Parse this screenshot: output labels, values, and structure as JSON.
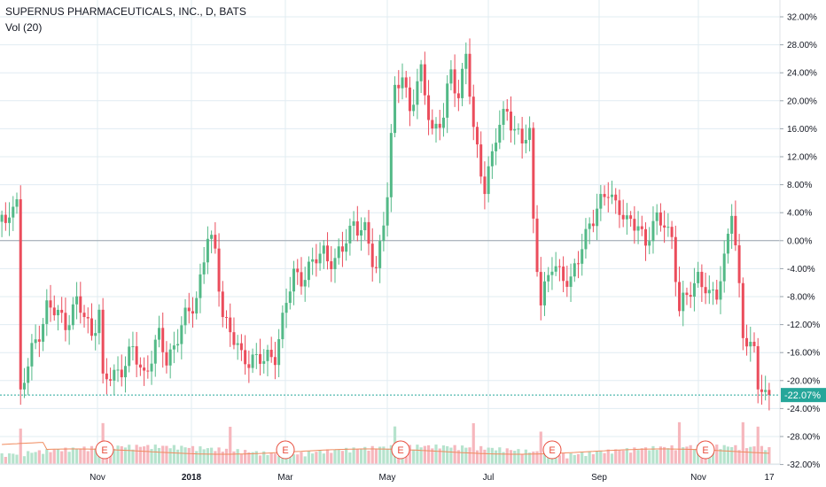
{
  "legend": {
    "symbol": "SUPERNUS PHARMACEUTICALS, INC., D, BATS",
    "volume": "Vol (20)"
  },
  "colors": {
    "up": "#53b987",
    "down": "#eb4d5c",
    "vol_up": "#b6e3cd",
    "vol_down": "#f6b7bd",
    "grid": "#e1ecf2",
    "zero_line": "#9aa4ad",
    "last_line": "#26a69a",
    "vol_ma": "#f08a5d",
    "earnings": "#e74c3c"
  },
  "chart_data": {
    "type": "candlestick",
    "y_unit": "% change",
    "ylim": [
      -32,
      34
    ],
    "y_ticks": [
      "32.00%",
      "28.00%",
      "24.00%",
      "20.00%",
      "16.00%",
      "12.00%",
      "8.00%",
      "4.00%",
      "0.00%",
      "-4.00%",
      "-8.00%",
      "-12.00%",
      "-16.00%",
      "-20.00%",
      "-24.00%",
      "-28.00%",
      "-32.00%"
    ],
    "x_ticks": [
      "Nov",
      "2018",
      "Mar",
      "May",
      "Jul",
      "Sep",
      "Nov",
      "17"
    ],
    "last_value": "-22.07%",
    "earnings_marker": "E",
    "earnings_count": 5,
    "price_path": [
      [
        0,
        3.0
      ],
      [
        1,
        1.0
      ],
      [
        3,
        6.5
      ],
      [
        4,
        6.0
      ],
      [
        5,
        -22.0
      ],
      [
        8,
        -16.0
      ],
      [
        12,
        -9.5
      ],
      [
        17,
        -11.5
      ],
      [
        20,
        -9.0
      ],
      [
        24,
        -13.0
      ],
      [
        26,
        -10.0
      ],
      [
        27,
        -20.5
      ],
      [
        32,
        -18.0
      ],
      [
        35,
        -16.0
      ],
      [
        38,
        -19.0
      ],
      [
        42,
        -14.0
      ],
      [
        44,
        -17.0
      ],
      [
        48,
        -12.5
      ],
      [
        52,
        -8.0
      ],
      [
        55,
        0.5
      ],
      [
        57,
        -2.0
      ],
      [
        59,
        -10.0
      ],
      [
        61,
        -13.0
      ],
      [
        64,
        -17.0
      ],
      [
        67,
        -16.5
      ],
      [
        70,
        -17.5
      ],
      [
        73,
        -16.0
      ],
      [
        76,
        -9.0
      ],
      [
        78,
        -5.0
      ],
      [
        80,
        -5.0
      ],
      [
        83,
        -3.5
      ],
      [
        86,
        -1.5
      ],
      [
        89,
        -3.0
      ],
      [
        91,
        -1.5
      ],
      [
        94,
        3.0
      ],
      [
        97,
        1.0
      ],
      [
        99,
        -3.0
      ],
      [
        100,
        -4.0
      ],
      [
        103,
        7.0
      ],
      [
        105,
        21.0
      ],
      [
        107,
        24.0
      ],
      [
        109,
        19.0
      ],
      [
        112,
        23.5
      ],
      [
        115,
        16.0
      ],
      [
        118,
        17.5
      ],
      [
        120,
        24.0
      ],
      [
        122,
        21.0
      ],
      [
        124,
        27.0
      ],
      [
        126,
        15.0
      ],
      [
        129,
        8.0
      ],
      [
        132,
        14.5
      ],
      [
        135,
        19.0
      ],
      [
        137,
        16.0
      ],
      [
        139,
        14.0
      ],
      [
        141,
        15.0
      ],
      [
        142,
        3.0
      ],
      [
        144,
        -8.5
      ],
      [
        147,
        -4.0
      ],
      [
        150,
        -4.5
      ],
      [
        152,
        -6.0
      ],
      [
        154,
        -3.0
      ],
      [
        157,
        3.0
      ],
      [
        160,
        5.0
      ],
      [
        162,
        7.0
      ],
      [
        165,
        5.0
      ],
      [
        167,
        2.0
      ],
      [
        170,
        2.5
      ],
      [
        172,
        0.0
      ],
      [
        175,
        2.5
      ],
      [
        177,
        3.0
      ],
      [
        179,
        0.5
      ],
      [
        181,
        -10.5
      ],
      [
        184,
        -6.5
      ],
      [
        186,
        -5.0
      ],
      [
        189,
        -8.5
      ],
      [
        191,
        -7.0
      ],
      [
        193,
        -2.5
      ],
      [
        195,
        4.0
      ],
      [
        196,
        -1.5
      ],
      [
        198,
        -13.0
      ],
      [
        199,
        -13.5
      ],
      [
        201,
        -16.0
      ],
      [
        202,
        -21.0
      ],
      [
        204,
        -22.5
      ],
      [
        205,
        -22.1
      ]
    ],
    "volume_ma_level": 0.32
  }
}
